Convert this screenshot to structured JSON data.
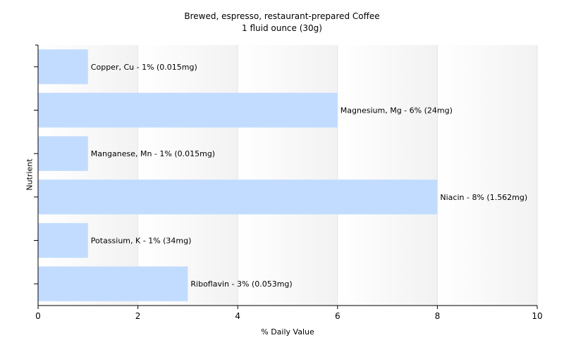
{
  "chart_data": {
    "type": "bar",
    "orientation": "horizontal",
    "title": "Brewed, espresso, restaurant-prepared Coffee",
    "subtitle": "1 fluid ounce (30g)",
    "xlabel": "% Daily Value",
    "ylabel": "Nutrient",
    "xlim": [
      0,
      10
    ],
    "xticks": [
      0,
      2,
      4,
      6,
      8,
      10
    ],
    "grid": true,
    "categories": [
      "Copper, Cu",
      "Magnesium, Mg",
      "Manganese, Mn",
      "Niacin",
      "Potassium, K",
      "Riboflavin"
    ],
    "values": [
      1,
      6,
      1,
      8,
      1,
      3
    ],
    "data_labels": [
      "Copper, Cu - 1% (0.015mg)",
      "Magnesium, Mg - 6% (24mg)",
      "Manganese, Mn - 1% (0.015mg)",
      "Niacin - 8% (1.562mg)",
      "Potassium, K - 1% (34mg)",
      "Riboflavin - 3% (0.053mg)"
    ],
    "colors": {
      "bar": "#c2dcff",
      "grid": "#e6e6e6",
      "axis": "#000000"
    }
  }
}
